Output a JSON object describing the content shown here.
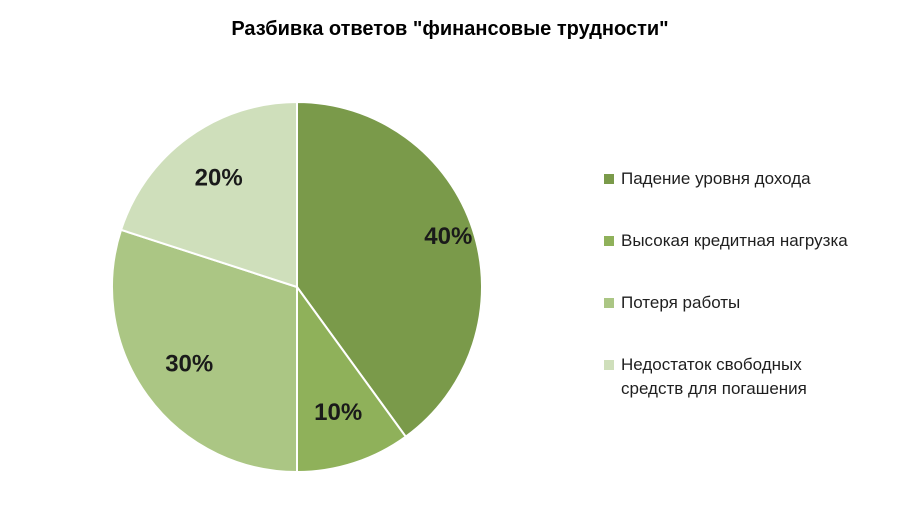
{
  "chart_data": {
    "type": "pie",
    "title": "Разбивка ответов \"финансовые трудности\"",
    "start_angle_deg": 0,
    "direction": "clockwise",
    "legend_position": "right",
    "slices": [
      {
        "label": "Падение уровня дохода",
        "value": 40,
        "display": "40%",
        "color": "#7a9a4a"
      },
      {
        "label": "Высокая кредитная нагрузка",
        "value": 10,
        "display": "10%",
        "color": "#8fb15a"
      },
      {
        "label": "Потеря работы",
        "value": 30,
        "display": "30%",
        "color": "#abc684"
      },
      {
        "label": "Недостаток свободных\nсредств для погашения",
        "value": 20,
        "display": "20%",
        "color": "#cfdfbb"
      }
    ]
  }
}
